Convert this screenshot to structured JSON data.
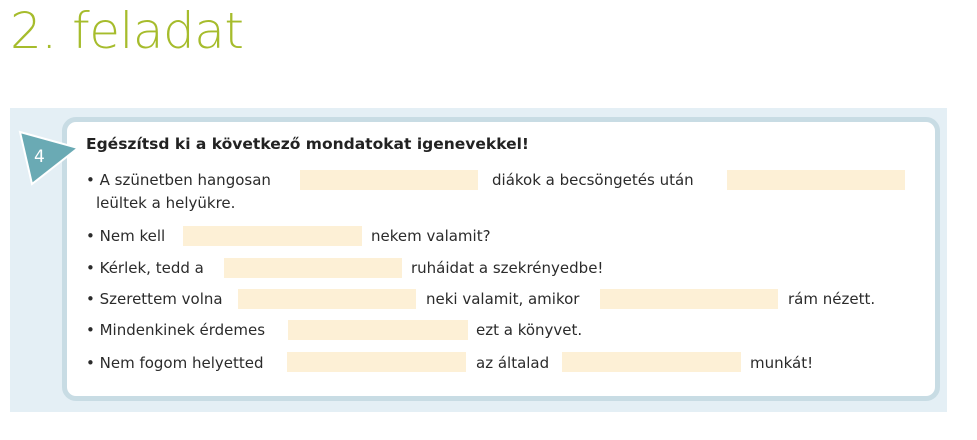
{
  "page_title": "2. feladat",
  "exercise": {
    "number": "4",
    "instruction": "Egészítsd ki a következő mondatokat igenevekkel!",
    "lines": [
      {
        "parts": [
          "• A szünetben hangosan",
          "diákok a becsöngetés után"
        ],
        "continuation": "leültek a helyükre."
      },
      {
        "parts": [
          "• Nem kell",
          "nekem valamit?"
        ]
      },
      {
        "parts": [
          "• Kérlek, tedd a",
          "ruháidat a szekrényedbe!"
        ]
      },
      {
        "parts": [
          "• Szerettem volna",
          "neki valamit, amikor",
          "rám nézett."
        ]
      },
      {
        "parts": [
          "• Mindenkinek érdemes",
          "ezt a könyvet."
        ]
      },
      {
        "parts": [
          "• Nem fogom helyetted",
          "az általad",
          "munkát!"
        ]
      }
    ]
  },
  "colors": {
    "title": "#a6bc2c",
    "badge": "#6aaab4",
    "blank": "#fdf0d6",
    "frame": "#c8dce4"
  }
}
